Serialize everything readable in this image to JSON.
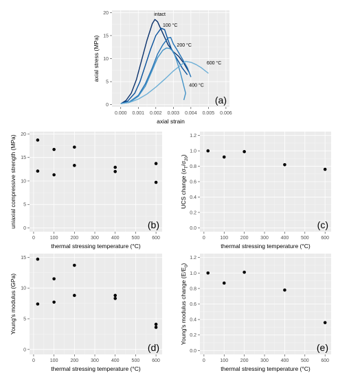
{
  "chart_data": [
    {
      "id": "a",
      "type": "line",
      "panel_tag": "(a)",
      "xlabel": "axial strain",
      "ylabel": "axial stress (MPa)",
      "xlim": [
        -0.0005,
        0.0062
      ],
      "ylim": [
        -0.5,
        20.5
      ],
      "xticks": [
        0,
        0.001,
        0.002,
        0.003,
        0.004,
        0.005,
        0.006
      ],
      "xtick_labels": [
        "0.000",
        "0.001",
        "0.002",
        "0.003",
        "0.004",
        "0.005",
        "0.006"
      ],
      "yticks": [
        0,
        5,
        10,
        15,
        20
      ],
      "ytick_labels": [
        "0",
        "5",
        "10",
        "15",
        "20"
      ],
      "grid": true,
      "series": [
        {
          "name": "intact",
          "color": "#08306b",
          "label_at": [
            0.0019,
            19.3
          ],
          "points": [
            [
              0,
              0.2
            ],
            [
              0.0003,
              0.9
            ],
            [
              0.0006,
              2.5
            ],
            [
              0.0009,
              5.5
            ],
            [
              0.0012,
              9.8
            ],
            [
              0.0015,
              14
            ],
            [
              0.0018,
              17.6
            ],
            [
              0.00195,
              18.5
            ],
            [
              0.0021,
              18.0
            ],
            [
              0.0024,
              15.5
            ],
            [
              0.0027,
              13
            ],
            [
              0.003,
              11.5
            ],
            [
              0.0033,
              10.5
            ],
            [
              0.0036,
              9.0
            ],
            [
              0.0039,
              7.0
            ]
          ]
        },
        {
          "name": "100 °C",
          "color": "#08519c",
          "label_at": [
            0.0024,
            16.9
          ],
          "points": [
            [
              0,
              0.2
            ],
            [
              0.0004,
              0.8
            ],
            [
              0.0008,
              2.5
            ],
            [
              0.0011,
              5
            ],
            [
              0.0014,
              8.5
            ],
            [
              0.0017,
              12
            ],
            [
              0.002,
              15
            ],
            [
              0.0023,
              16.6
            ],
            [
              0.0025,
              16.3
            ],
            [
              0.0027,
              14
            ],
            [
              0.0029,
              12
            ],
            [
              0.0032,
              10
            ],
            [
              0.0035,
              8
            ],
            [
              0.0038,
              6.5
            ]
          ]
        },
        {
          "name": "200 °C",
          "color": "#2171b5",
          "label_at": [
            0.0032,
            12.6
          ],
          "points": [
            [
              0,
              0.2
            ],
            [
              0.0005,
              0.6
            ],
            [
              0.001,
              2
            ],
            [
              0.0014,
              4.5
            ],
            [
              0.0018,
              8
            ],
            [
              0.0021,
              11
            ],
            [
              0.0024,
              13
            ],
            [
              0.0027,
              14.5
            ],
            [
              0.00285,
              14.6
            ],
            [
              0.003,
              13.2
            ],
            [
              0.0032,
              12
            ],
            [
              0.0035,
              10
            ],
            [
              0.0038,
              8
            ],
            [
              0.004,
              6
            ]
          ]
        },
        {
          "name": "400 °C",
          "color": "#4292c6",
          "label_at": [
            0.0039,
            3.9
          ],
          "points": [
            [
              0,
              0.2
            ],
            [
              0.0005,
              0.5
            ],
            [
              0.001,
              1.8
            ],
            [
              0.0014,
              4
            ],
            [
              0.0018,
              7.5
            ],
            [
              0.0021,
              10.2
            ],
            [
              0.0024,
              11.8
            ],
            [
              0.0026,
              12.3
            ],
            [
              0.0028,
              12.2
            ],
            [
              0.003,
              11.5
            ],
            [
              0.0032,
              9.5
            ],
            [
              0.0034,
              7
            ],
            [
              0.0036,
              4
            ],
            [
              0.0037,
              2.5
            ],
            [
              0.0036,
              1.0
            ]
          ]
        },
        {
          "name": "600 °C",
          "color": "#6baed6",
          "label_at": [
            0.0049,
            8.7
          ],
          "points": [
            [
              0,
              0.2
            ],
            [
              0.0005,
              0.5
            ],
            [
              0.001,
              1.2
            ],
            [
              0.0015,
              2.3
            ],
            [
              0.002,
              3.8
            ],
            [
              0.0025,
              5.5
            ],
            [
              0.003,
              7.3
            ],
            [
              0.0035,
              8.8
            ],
            [
              0.0037,
              9.4
            ],
            [
              0.004,
              9.2
            ],
            [
              0.0043,
              8.7
            ],
            [
              0.0046,
              8.0
            ],
            [
              0.005,
              6.8
            ]
          ]
        }
      ]
    },
    {
      "id": "b",
      "type": "scatter",
      "panel_tag": "(b)",
      "xlabel": "thermal stressing temperature (°C)",
      "ylabel": "uniaxial compressive strength (MPa)",
      "xlim": [
        -20,
        630
      ],
      "ylim": [
        -0.8,
        20.5
      ],
      "xticks": [
        0,
        100,
        200,
        300,
        400,
        500,
        600
      ],
      "xtick_labels": [
        "0",
        "100",
        "200",
        "300",
        "400",
        "500",
        "600"
      ],
      "yticks": [
        0,
        5,
        10,
        15,
        20
      ],
      "ytick_labels": [
        "0",
        "5",
        "10",
        "15",
        "20"
      ],
      "grid": true,
      "points": [
        [
          20,
          18.7
        ],
        [
          20,
          12.1
        ],
        [
          100,
          16.7
        ],
        [
          100,
          11.3
        ],
        [
          200,
          17.2
        ],
        [
          200,
          13.3
        ],
        [
          400,
          12.9
        ],
        [
          400,
          12.0
        ],
        [
          600,
          13.7
        ],
        [
          600,
          9.7
        ]
      ]
    },
    {
      "id": "c",
      "type": "scatter",
      "panel_tag": "(c)",
      "xlabel": "thermal stressing temperature (°C)",
      "ylabel": "UCS change (σ_T/σ_20)",
      "xlim": [
        -20,
        630
      ],
      "ylim": [
        -0.05,
        1.25
      ],
      "xticks": [
        0,
        100,
        200,
        300,
        400,
        500,
        600
      ],
      "xtick_labels": [
        "0",
        "100",
        "200",
        "300",
        "400",
        "500",
        "600"
      ],
      "yticks": [
        0,
        0.2,
        0.4,
        0.6,
        0.8,
        1.0,
        1.2
      ],
      "ytick_labels": [
        "0.0",
        "0.2",
        "0.4",
        "0.6",
        "0.8",
        "1.0",
        "1.2"
      ],
      "grid": true,
      "points": [
        [
          20,
          1.0
        ],
        [
          100,
          0.92
        ],
        [
          200,
          0.99
        ],
        [
          400,
          0.82
        ],
        [
          600,
          0.76
        ]
      ]
    },
    {
      "id": "d",
      "type": "scatter",
      "panel_tag": "(d)",
      "xlabel": "thermal stressing temperature (°C)",
      "ylabel": "Young's modulus (GPa)",
      "xlim": [
        -20,
        630
      ],
      "ylim": [
        -0.8,
        15.6
      ],
      "xticks": [
        0,
        100,
        200,
        300,
        400,
        500,
        600
      ],
      "xtick_labels": [
        "0",
        "100",
        "200",
        "300",
        "400",
        "500",
        "600"
      ],
      "yticks": [
        0,
        5,
        10,
        15
      ],
      "ytick_labels": [
        "0",
        "5",
        "10",
        "15"
      ],
      "grid": true,
      "points": [
        [
          20,
          14.7
        ],
        [
          20,
          7.4
        ],
        [
          100,
          11.5
        ],
        [
          100,
          7.7
        ],
        [
          200,
          13.7
        ],
        [
          200,
          8.8
        ],
        [
          400,
          8.8
        ],
        [
          400,
          8.3
        ],
        [
          600,
          4.1
        ],
        [
          600,
          3.6
        ]
      ]
    },
    {
      "id": "e",
      "type": "scatter",
      "panel_tag": "(e)",
      "xlabel": "thermal stressing temperature (°C)",
      "ylabel": "Young's modulus change (E/E_0)",
      "xlim": [
        -20,
        630
      ],
      "ylim": [
        -0.05,
        1.25
      ],
      "xticks": [
        0,
        100,
        200,
        300,
        400,
        500,
        600
      ],
      "xtick_labels": [
        "0",
        "100",
        "200",
        "300",
        "400",
        "500",
        "600"
      ],
      "yticks": [
        0,
        0.2,
        0.4,
        0.6,
        0.8,
        1.0,
        1.2
      ],
      "ytick_labels": [
        "0.0",
        "0.2",
        "0.4",
        "0.6",
        "0.8",
        "1.0",
        "1.2"
      ],
      "grid": true,
      "points": [
        [
          20,
          1.0
        ],
        [
          100,
          0.87
        ],
        [
          200,
          1.01
        ],
        [
          400,
          0.78
        ],
        [
          600,
          0.36
        ]
      ]
    }
  ]
}
